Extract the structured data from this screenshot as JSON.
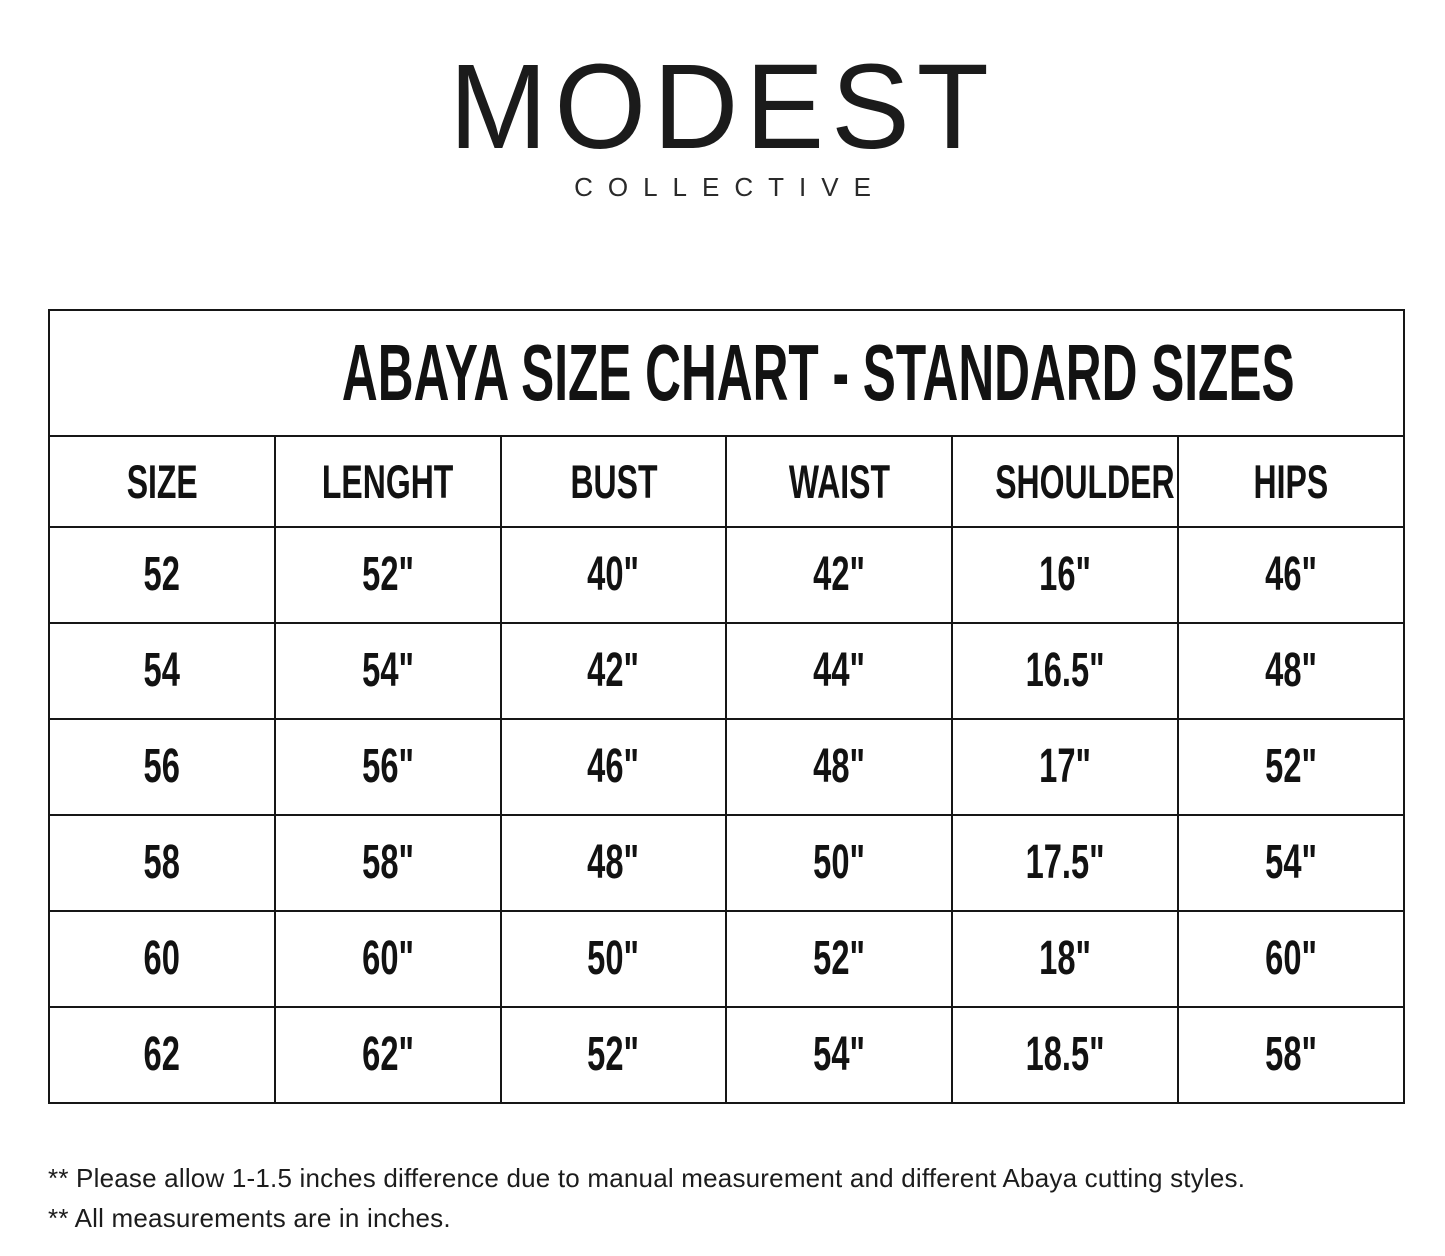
{
  "brand": {
    "name": "MODEST",
    "subtitle": "COLLECTIVE"
  },
  "chart_data": {
    "type": "table",
    "title": "ABAYA SIZE CHART - STANDARD SIZES",
    "columns": [
      "SIZE",
      "LENGHT",
      "BUST",
      "WAIST",
      "SHOULDER",
      "HIPS"
    ],
    "rows": [
      [
        "52",
        "52\"",
        "40\"",
        "42\"",
        "16\"",
        "46\""
      ],
      [
        "54",
        "54\"",
        "42\"",
        "44\"",
        "16.5\"",
        "48\""
      ],
      [
        "56",
        "56\"",
        "46\"",
        "48\"",
        "17\"",
        "52\""
      ],
      [
        "58",
        "58\"",
        "48\"",
        "50\"",
        "17.5\"",
        "54\""
      ],
      [
        "60",
        "60\"",
        "50\"",
        "52\"",
        "18\"",
        "60\""
      ],
      [
        "62",
        "62\"",
        "52\"",
        "54\"",
        "18.5\"",
        "58\""
      ]
    ],
    "layout": {
      "grid": true,
      "header_row": true,
      "title_row_spans_all_columns": true
    }
  },
  "notes": [
    "** Please allow 1-1.5 inches difference due to manual measurement and different Abaya cutting styles.",
    "** All measurements are in inches."
  ],
  "colors": {
    "background": "#ffffff",
    "text": "#121212",
    "border": "#161616"
  }
}
